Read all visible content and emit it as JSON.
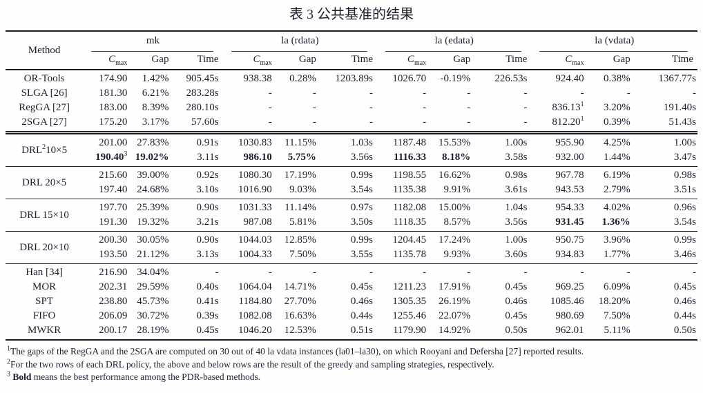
{
  "title": "表 3 公共基准的结果",
  "table": {
    "method_header": "Method",
    "groups": [
      {
        "label": "mk"
      },
      {
        "label": "la (rdata)"
      },
      {
        "label": "la (edata)"
      },
      {
        "label": "la (vdata)"
      }
    ],
    "sub_headers": [
      {
        "type": "cmax",
        "base": "C",
        "sub": "max"
      },
      {
        "type": "plain",
        "label": "Gap"
      },
      {
        "type": "plain",
        "label": "Time"
      }
    ],
    "sections": [
      {
        "kind": "simple",
        "rule": "none",
        "rows": [
          {
            "method": {
              "pre": "OR-Tools"
            },
            "cells": [
              "174.90",
              "1.42%",
              "905.45s",
              "938.38",
              "0.28%",
              "1203.89s",
              "1026.70",
              "-0.19%",
              "226.53s",
              "924.40",
              "0.38%",
              "1367.77s"
            ]
          },
          {
            "method": {
              "pre": "SLGA [26]"
            },
            "cells": [
              "181.30",
              "6.21%",
              "283.28s",
              "-",
              "-",
              "-",
              "-",
              "-",
              "-",
              "-",
              "-",
              "-"
            ]
          },
          {
            "method": {
              "pre": "RegGA [27]"
            },
            "cells": [
              "183.00",
              "8.39%",
              "280.10s",
              "-",
              "-",
              "-",
              "-",
              "-",
              "-",
              {
                "v": "836.13",
                "sup": "1"
              },
              "3.20%",
              "191.40s"
            ]
          },
          {
            "method": {
              "pre": "2SGA [27]"
            },
            "cells": [
              "175.20",
              "3.17%",
              "57.60s",
              "-",
              "-",
              "-",
              "-",
              "-",
              "-",
              {
                "v": "812.20",
                "sup": "1"
              },
              "0.39%",
              "51.43s"
            ]
          }
        ]
      },
      {
        "kind": "block",
        "rule": "double",
        "method": {
          "pre": "DRL",
          "sup": "2",
          "post": "10×5"
        },
        "rows": [
          [
            "201.00",
            "27.83%",
            "0.91s",
            "1030.83",
            "11.15%",
            "1.03s",
            "1187.48",
            "15.53%",
            "1.00s",
            "955.90",
            "4.25%",
            "1.00s"
          ],
          [
            {
              "v": "190.40",
              "sup": "3",
              "b": true
            },
            {
              "v": "19.02%",
              "b": true
            },
            "3.11s",
            {
              "v": "986.10",
              "b": true
            },
            {
              "v": "5.75%",
              "b": true
            },
            "3.56s",
            {
              "v": "1116.33",
              "b": true
            },
            {
              "v": "8.18%",
              "b": true
            },
            "3.58s",
            "932.00",
            "1.44%",
            "3.47s"
          ]
        ]
      },
      {
        "kind": "block",
        "rule": "single",
        "method": {
          "pre": "DRL 20×5"
        },
        "rows": [
          [
            "215.60",
            "39.00%",
            "0.92s",
            "1080.30",
            "17.19%",
            "0.99s",
            "1198.55",
            "16.62%",
            "0.98s",
            "967.78",
            "6.19%",
            "0.98s"
          ],
          [
            "197.40",
            "24.68%",
            "3.10s",
            "1016.90",
            "9.03%",
            "3.54s",
            "1135.38",
            "9.91%",
            "3.61s",
            "943.53",
            "2.79%",
            "3.51s"
          ]
        ]
      },
      {
        "kind": "block",
        "rule": "single",
        "method": {
          "pre": "DRL 15×10"
        },
        "rows": [
          [
            "197.70",
            "25.39%",
            "0.90s",
            "1031.33",
            "11.14%",
            "0.97s",
            "1182.08",
            "15.00%",
            "1.04s",
            "954.33",
            "4.02%",
            "0.96s"
          ],
          [
            "191.30",
            "19.32%",
            "3.21s",
            "987.08",
            "5.81%",
            "3.50s",
            "1118.35",
            "8.57%",
            "3.56s",
            {
              "v": "931.45",
              "b": true
            },
            {
              "v": "1.36%",
              "b": true
            },
            "3.54s"
          ]
        ]
      },
      {
        "kind": "block",
        "rule": "single",
        "method": {
          "pre": "DRL 20×10"
        },
        "rows": [
          [
            "200.30",
            "30.05%",
            "0.90s",
            "1044.03",
            "12.85%",
            "0.99s",
            "1204.45",
            "17.24%",
            "1.00s",
            "950.75",
            "3.96%",
            "0.99s"
          ],
          [
            "193.50",
            "21.12%",
            "3.13s",
            "1004.33",
            "7.50%",
            "3.55s",
            "1135.78",
            "9.93%",
            "3.60s",
            "934.83",
            "1.77%",
            "3.46s"
          ]
        ]
      },
      {
        "kind": "simple",
        "rule": "single",
        "rows": [
          {
            "method": {
              "pre": "Han [34]"
            },
            "cells": [
              "216.90",
              "34.04%",
              "-",
              "-",
              "-",
              "-",
              "-",
              "-",
              "-",
              "-",
              "-",
              "-"
            ]
          },
          {
            "method": {
              "pre": "MOR"
            },
            "cells": [
              "202.31",
              "29.59%",
              "0.40s",
              "1064.04",
              "14.71%",
              "0.45s",
              "1211.23",
              "17.91%",
              "0.45s",
              "969.25",
              "6.09%",
              "0.45s"
            ]
          },
          {
            "method": {
              "pre": "SPT"
            },
            "cells": [
              "238.80",
              "45.73%",
              "0.41s",
              "1184.80",
              "27.70%",
              "0.46s",
              "1305.35",
              "26.19%",
              "0.46s",
              "1085.46",
              "18.20%",
              "0.46s"
            ]
          },
          {
            "method": {
              "pre": "FIFO"
            },
            "cells": [
              "206.09",
              "30.72%",
              "0.39s",
              "1082.08",
              "16.63%",
              "0.44s",
              "1255.46",
              "22.07%",
              "0.45s",
              "980.69",
              "7.50%",
              "0.44s"
            ]
          },
          {
            "method": {
              "pre": "MWKR"
            },
            "cells": [
              "200.17",
              "28.19%",
              "0.45s",
              "1046.20",
              "12.53%",
              "0.51s",
              "1179.90",
              "14.92%",
              "0.50s",
              "962.01",
              "5.11%",
              "0.50s"
            ]
          }
        ]
      }
    ]
  },
  "footnotes": [
    {
      "sup": "1",
      "bold": "",
      "text": "The gaps of the RegGA and the 2SGA are computed on 30 out of 40 la vdata instances (la01–la30), on which Rooyani and Defersha [27] reported results."
    },
    {
      "sup": "2",
      "bold": "",
      "text": "For the two rows of each DRL policy, the above and below rows are the result of the greedy and sampling strategies, respectively."
    },
    {
      "sup": "3",
      "bold": "Bold",
      "text": " means the best performance among the PDR-based methods."
    }
  ]
}
